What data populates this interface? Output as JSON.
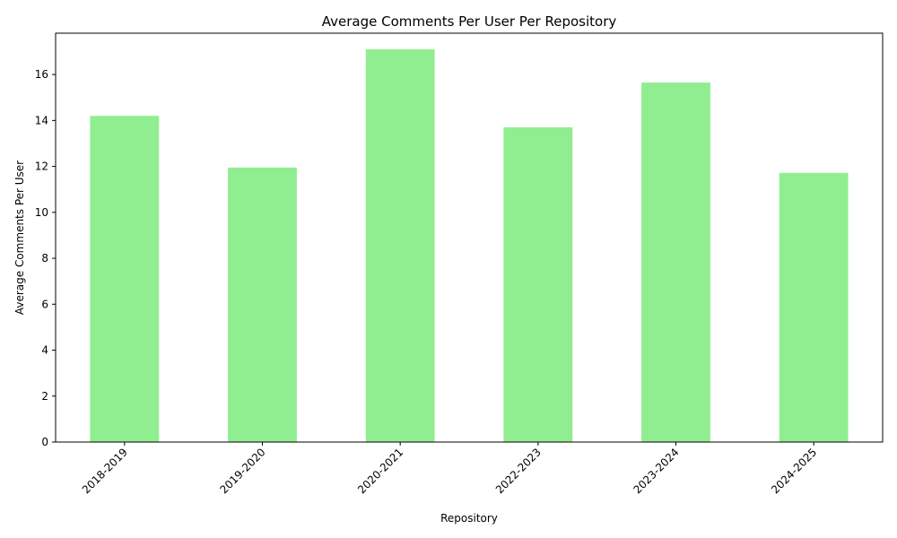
{
  "chart_data": {
    "type": "bar",
    "title": "Average Comments Per User Per Repository",
    "xlabel": "Repository",
    "ylabel": "Average Comments Per User",
    "categories": [
      "2018-2019",
      "2019-2020",
      "2020-2021",
      "2022-2023",
      "2023-2024",
      "2024-2025"
    ],
    "values": [
      14.2,
      11.95,
      17.1,
      13.7,
      15.65,
      11.72
    ],
    "ylim": [
      0,
      17.8
    ],
    "yticks": [
      0,
      2,
      4,
      6,
      8,
      10,
      12,
      14,
      16
    ],
    "bar_color": "#90ee90",
    "grid": false,
    "legend": false
  }
}
